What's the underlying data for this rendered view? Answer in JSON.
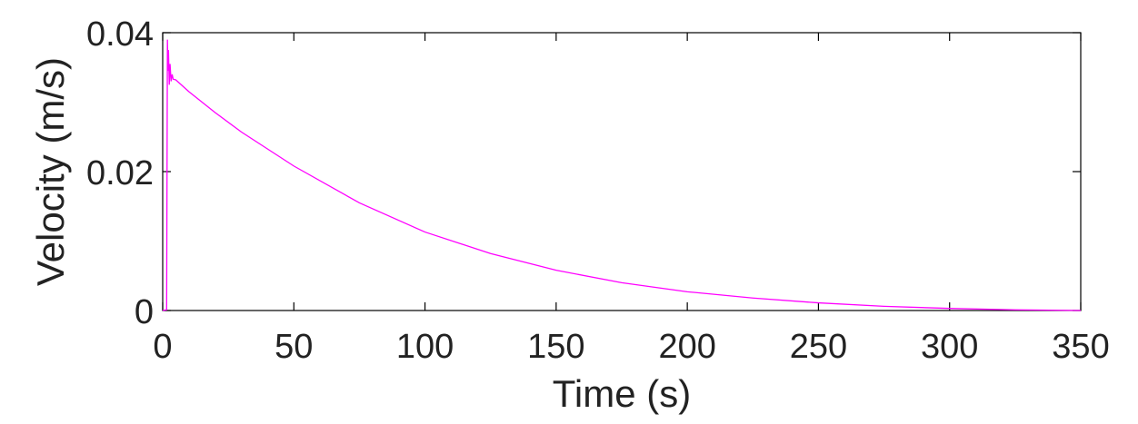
{
  "chart_data": {
    "type": "line",
    "title": "",
    "xlabel": "Time (s)",
    "ylabel": "Velocity (m/s)",
    "xlim": [
      0,
      350
    ],
    "ylim": [
      0,
      0.04
    ],
    "xticks": [
      0,
      50,
      100,
      150,
      200,
      250,
      300,
      350
    ],
    "xtick_labels": [
      "0",
      "50",
      "100",
      "150",
      "200",
      "250",
      "300",
      "350"
    ],
    "yticks": [
      0,
      0.02,
      0.04
    ],
    "ytick_labels": [
      "0",
      "0.02",
      "0.04"
    ],
    "grid": false,
    "legend": "none",
    "series": [
      {
        "color": "#ff00ff",
        "x": [
          0,
          1.5,
          1.8,
          2.0,
          2.2,
          2.5,
          2.8,
          3.2,
          3.6,
          4.0,
          5,
          10,
          20,
          30,
          50,
          75,
          100,
          125,
          150,
          175,
          200,
          225,
          250,
          275,
          300,
          325,
          350
        ],
        "y": [
          0,
          0.0001,
          0.039,
          0.0345,
          0.0375,
          0.0325,
          0.0355,
          0.033,
          0.034,
          0.0333,
          0.0332,
          0.0315,
          0.0285,
          0.0257,
          0.0208,
          0.0155,
          0.0113,
          0.0082,
          0.0058,
          0.004,
          0.0027,
          0.0018,
          0.0011,
          0.0006,
          0.0003,
          0.0001,
          0.0
        ]
      }
    ]
  }
}
